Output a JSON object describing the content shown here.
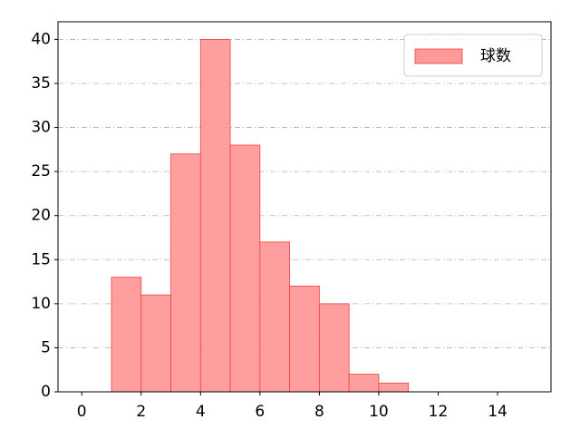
{
  "chart_data": {
    "type": "histogram",
    "bins": [
      1,
      2,
      3,
      4,
      5,
      6,
      7,
      8,
      9,
      10,
      11
    ],
    "series": [
      {
        "name": "球数",
        "color": "#ff9999",
        "values": [
          13,
          11,
          27,
          40,
          28,
          17,
          12,
          10,
          2,
          1
        ]
      }
    ],
    "xlim": [
      -0.8,
      15.8
    ],
    "xticks": [
      0,
      2,
      4,
      6,
      8,
      10,
      12,
      14
    ],
    "ylim": [
      0,
      42
    ],
    "yticks": [
      0,
      5,
      10,
      15,
      20,
      25,
      30,
      35,
      40
    ],
    "grid": "y",
    "legend": "upper right"
  }
}
